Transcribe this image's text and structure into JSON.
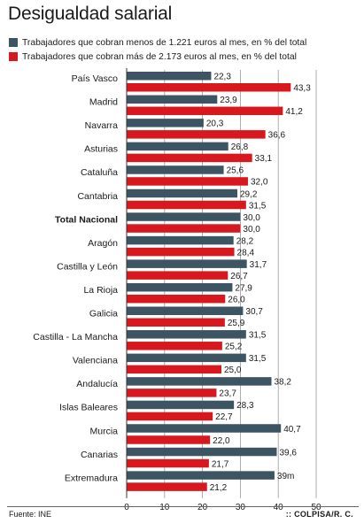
{
  "title": "Desigualdad salarial",
  "legend": [
    {
      "label": "Trabajadores que cobran menos de 1.221 euros al mes, en % del total",
      "color": "#3d5563"
    },
    {
      "label": "Trabajadores que cobran más de 2.173 euros al mes, en % del total",
      "color": "#d7191f"
    }
  ],
  "footer": {
    "source": "Fuente: INE",
    "credit": ":: COLPISA/R. C."
  },
  "chart_data": {
    "type": "bar",
    "orientation": "horizontal",
    "title": "Desigualdad salarial",
    "categories": [
      "País Vasco",
      "Madrid",
      "Navarra",
      "Asturias",
      "Cataluña",
      "Cantabria",
      "Total Nacional",
      "Aragón",
      "Castilla y León",
      "La Rioja",
      "Galicia",
      "Castilla - La Mancha",
      "Valenciana",
      "Andalucía",
      "Islas Baleares",
      "Murcia",
      "Canarias",
      "Extremadura"
    ],
    "bold_categories": [
      "Total Nacional"
    ],
    "series": [
      {
        "name": "Trabajadores que cobran menos de 1.221 euros al mes, en % del total",
        "color": "#3d5563",
        "values": [
          22.3,
          23.9,
          20.3,
          26.8,
          25.6,
          29.2,
          30.0,
          28.2,
          31.7,
          27.9,
          30.7,
          31.5,
          31.5,
          38.2,
          28.3,
          40.7,
          39.6,
          39.0
        ],
        "labels": [
          "22,3",
          "23,9",
          "20,3",
          "26,8",
          "25,6",
          "29,2",
          "30,0",
          "28,2",
          "31,7",
          "27,9",
          "30,7",
          "31,5",
          "31,5",
          "38,2",
          "28,3",
          "40,7",
          "39,6",
          "39m"
        ]
      },
      {
        "name": "Trabajadores que cobran más de 2.173 euros al mes, en % del total",
        "color": "#d7191f",
        "values": [
          43.3,
          41.2,
          36.6,
          33.1,
          32.0,
          31.5,
          30.0,
          28.4,
          26.7,
          26.0,
          25.9,
          25.2,
          25.0,
          23.7,
          22.7,
          22.0,
          21.7,
          21.2
        ],
        "labels": [
          "43,3",
          "41,2",
          "36,6",
          "33,1",
          "32,0",
          "31,5",
          "30,0",
          "28,4",
          "26,7",
          "26,0",
          "25,9",
          "25,2",
          "25,0",
          "23,7",
          "22,7",
          "22,0",
          "21,7",
          "21,2"
        ]
      }
    ],
    "xlim": [
      0,
      50
    ],
    "xticks": [
      0,
      10,
      20,
      30,
      40,
      50
    ],
    "xlabel": "",
    "ylabel": "",
    "grid": true,
    "legend_position": "top"
  }
}
